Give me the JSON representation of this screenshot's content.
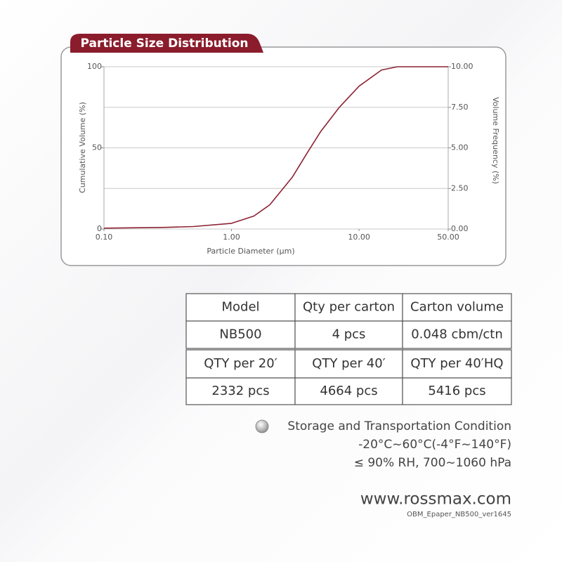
{
  "chart_data": {
    "type": "line",
    "title": "Particle Size Distribution",
    "x_label": "Particle Diameter (μm)",
    "y_label": "Cumulative Volume (%)",
    "y2_label": "Volume Frequency (%)",
    "x_scale": "log",
    "xlim": [
      0.1,
      50
    ],
    "xticks": [
      {
        "value": 0.1,
        "label": "0.10"
      },
      {
        "value": 1,
        "label": "1.00"
      },
      {
        "value": 10,
        "label": "10.00"
      },
      {
        "value": 50,
        "label": "50.00"
      }
    ],
    "ylim": [
      0,
      100
    ],
    "yticks": [
      0,
      50,
      100
    ],
    "y2lim": [
      0,
      10
    ],
    "y2ticks": [
      {
        "value": 0,
        "label": "0.00"
      },
      {
        "value": 2.5,
        "label": "2.50"
      },
      {
        "value": 5,
        "label": "5.00"
      },
      {
        "value": 7.5,
        "label": "7.50"
      },
      {
        "value": 10,
        "label": "10.00"
      }
    ],
    "grid": true,
    "color": "#8b2332",
    "x": [
      0.1,
      0.3,
      0.5,
      1,
      1.5,
      2,
      3,
      4,
      5,
      7,
      10,
      15,
      20,
      50
    ],
    "values": [
      0.5,
      1,
      1.5,
      3.5,
      8,
      15,
      32,
      48,
      60,
      75,
      88,
      98,
      100,
      100
    ]
  },
  "table": {
    "rows": [
      [
        "Model",
        "Qty per carton",
        "Carton volume"
      ],
      [
        "NB500",
        "4 pcs",
        "0.048 cbm/ctn"
      ],
      [
        "QTY per 20′",
        "QTY per 40′",
        "QTY per 40′HQ"
      ],
      [
        "2332 pcs",
        "4664 pcs",
        "5416 pcs"
      ]
    ]
  },
  "storage": {
    "title": "Storage and Transportation Condition",
    "lines": [
      "-20°C~60°C(-4°F~140°F)",
      "≤ 90% RH, 700~1060 hPa"
    ]
  },
  "footer": {
    "website": "www.rossmax.com",
    "code": "OBM_Epaper_NB500_ver1645"
  }
}
